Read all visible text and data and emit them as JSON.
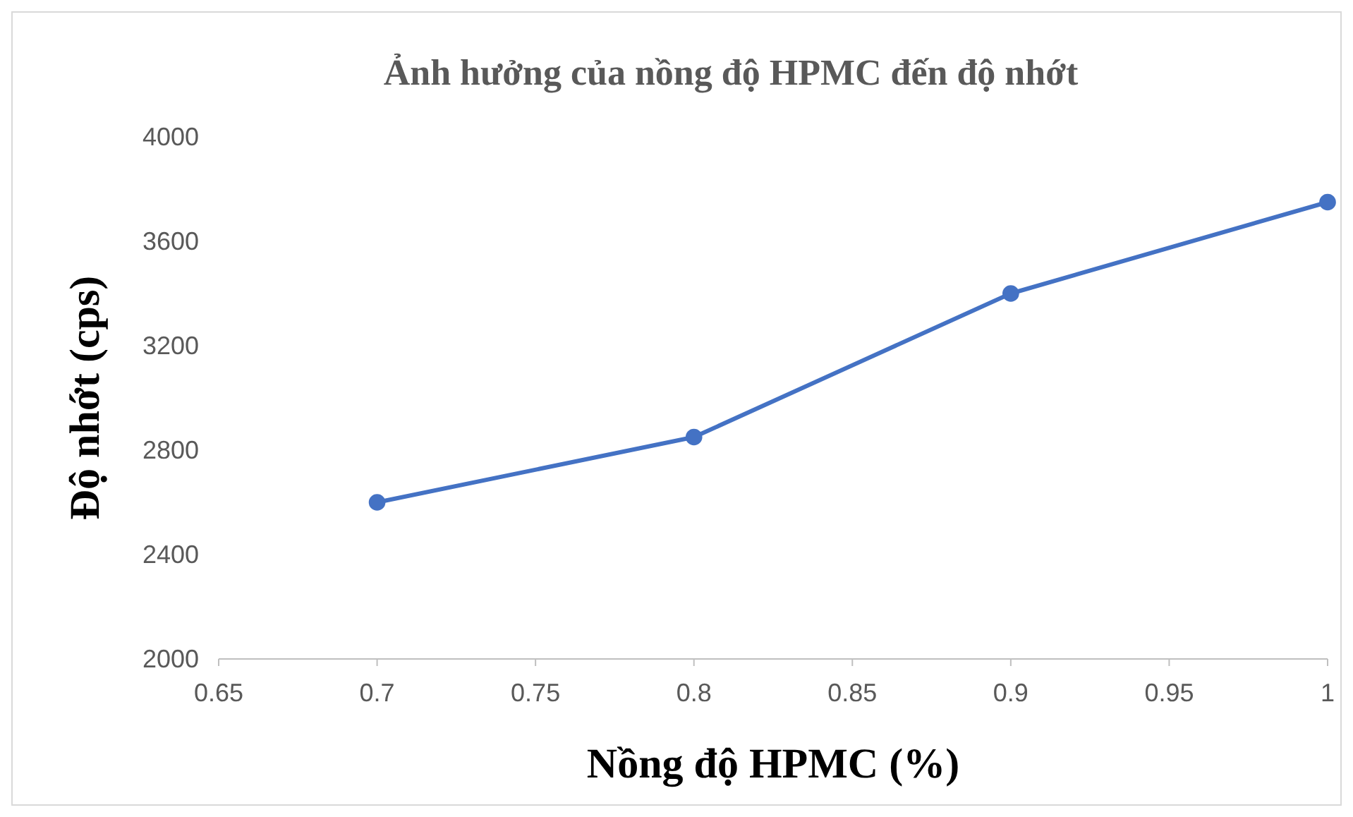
{
  "chart_data": {
    "type": "line",
    "title": "Ảnh hưởng của nồng độ HPMC đến độ nhớt",
    "xlabel": "Nồng độ HPMC (%)",
    "ylabel": "Độ nhớt (cps)",
    "x": [
      0.7,
      0.8,
      0.9,
      1
    ],
    "series": [
      {
        "color": "#4472c4",
        "values": [
          2600,
          2850,
          3400,
          3750
        ]
      }
    ],
    "xlim": [
      0.65,
      1
    ],
    "xticks": [
      0.65,
      0.7,
      0.75,
      0.8,
      0.85,
      0.9,
      0.95,
      1
    ],
    "ylim": [
      2000,
      4000
    ],
    "yticks": [
      2000,
      2400,
      2800,
      3200,
      3600,
      4000
    ],
    "grid": false,
    "marker": "circle",
    "line_style": "solid"
  }
}
